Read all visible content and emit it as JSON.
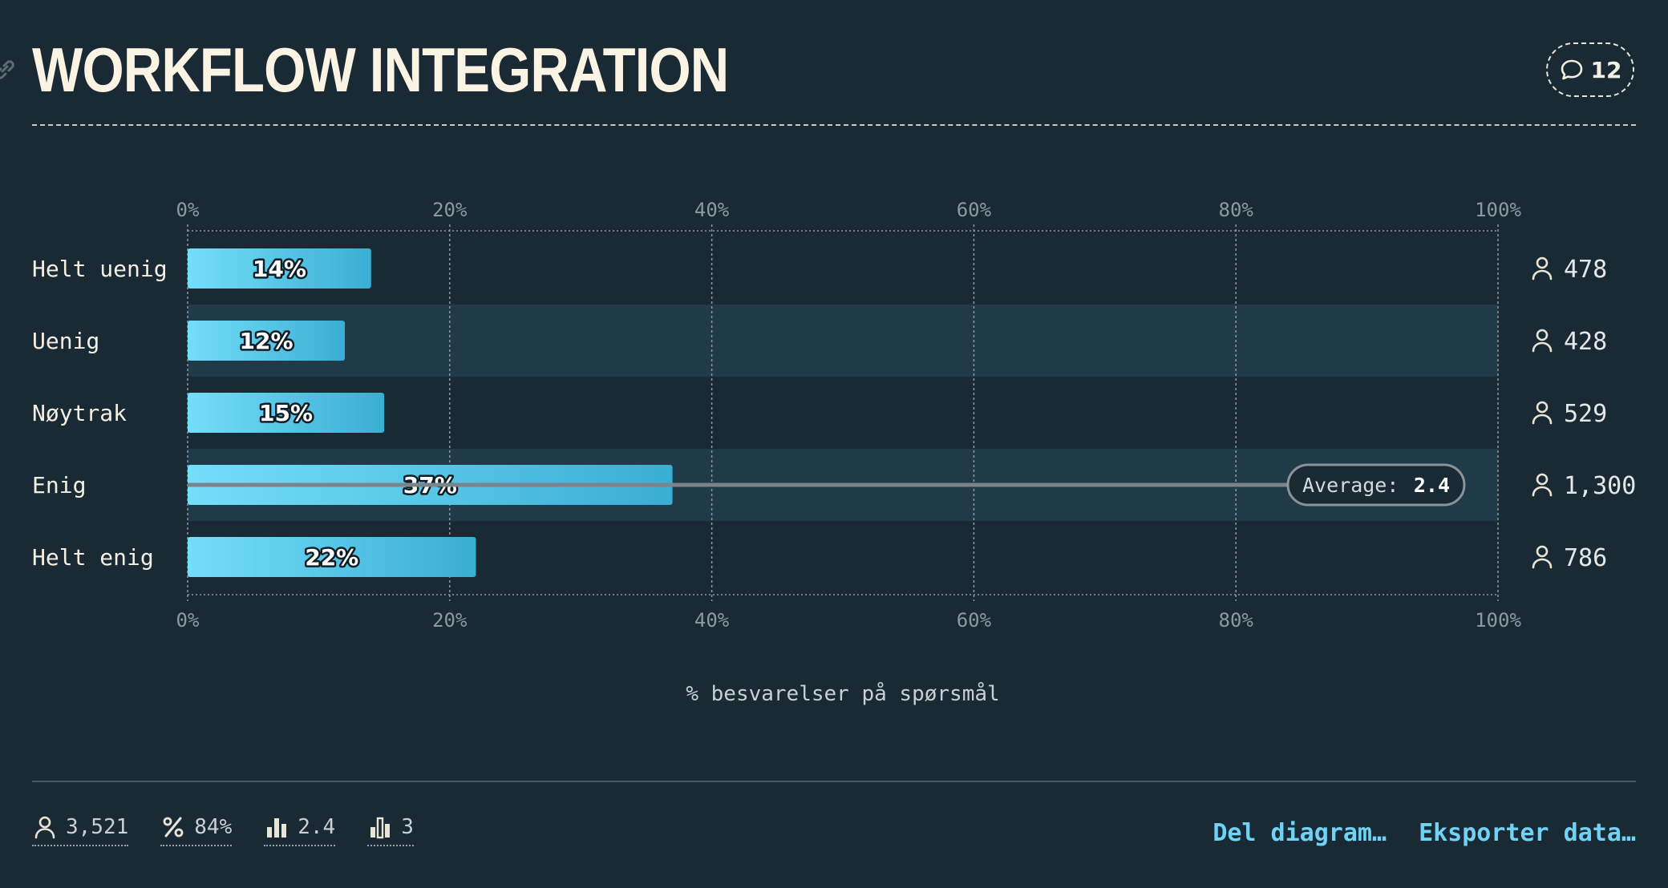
{
  "header": {
    "title": "WORKFLOW INTEGRATION",
    "comment_count": "12"
  },
  "colors": {
    "background": "#1a2a34",
    "bar_start": "#74def9",
    "bar_end": "#3aaed3",
    "band": "#203a4a",
    "accent": "#6fd3f5",
    "title": "#fbf3e3"
  },
  "icons": [
    "link-icon",
    "comment-icon",
    "user-icon",
    "percent-icon",
    "bar-chart-icon",
    "bar-chart-outline-icon"
  ],
  "chart_data": {
    "type": "bar",
    "orientation": "horizontal",
    "title": "",
    "categories": [
      "Helt uenig",
      "Uenig",
      "Nøytrak",
      "Enig",
      "Helt enig"
    ],
    "values": [
      14,
      12,
      15,
      37,
      22
    ],
    "value_labels": [
      "14%",
      "12%",
      "15%",
      "37%",
      "22%"
    ],
    "respondents": [
      "478",
      "428",
      "529",
      "1,300",
      "786"
    ],
    "xlim": [
      0,
      100
    ],
    "ticks": [
      "0%",
      "20%",
      "40%",
      "60%",
      "80%",
      "100%"
    ],
    "tick_values": [
      0,
      20,
      40,
      60,
      80,
      100
    ],
    "xlabel": "% besvarelser på spørsmål",
    "ylabel": "",
    "grid": true,
    "average": {
      "label": "Average:",
      "value": "2.4",
      "position": 3.5
    },
    "highlighted_rows": [
      1,
      3
    ]
  },
  "footer": {
    "stats": [
      {
        "icon": "user-icon",
        "value": "3,521"
      },
      {
        "icon": "percent-icon",
        "value": "84%"
      },
      {
        "icon": "bar-chart-icon",
        "value": "2.4"
      },
      {
        "icon": "bar-chart-outline-icon",
        "value": "3"
      }
    ],
    "share_label": "Del diagram…",
    "export_label": "Eksporter data…"
  }
}
